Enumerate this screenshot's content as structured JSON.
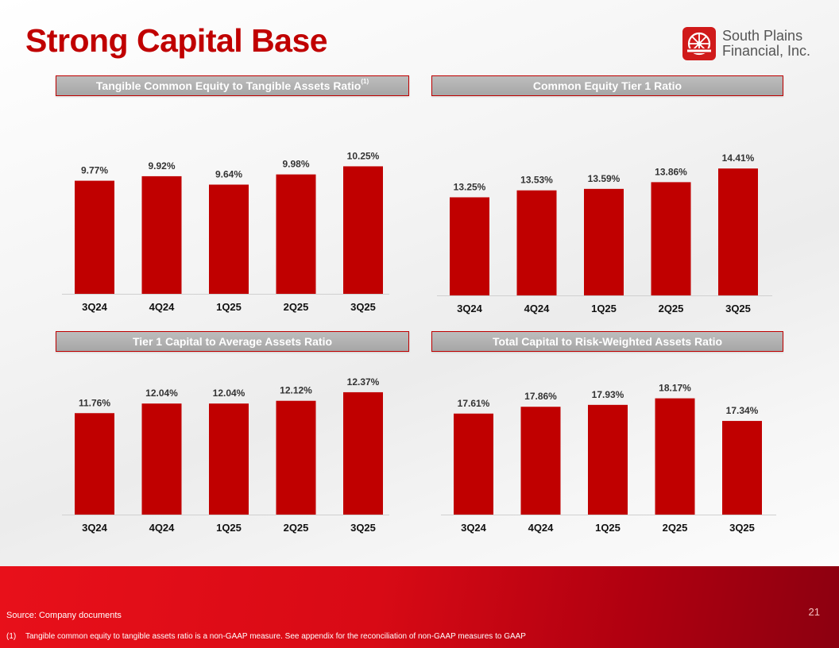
{
  "title": "Strong Capital Base",
  "logo": {
    "line1": "South Plains",
    "line2": "Financial, Inc.",
    "color": "#d01a1a"
  },
  "colors": {
    "bar": "#c00000",
    "accent": "#c00000"
  },
  "chart_data": [
    {
      "type": "bar",
      "title": "Tangible Common Equity to Tangible Assets Ratio",
      "title_superscript": "(1)",
      "categories": [
        "3Q24",
        "4Q24",
        "1Q25",
        "2Q25",
        "3Q25"
      ],
      "values": [
        9.77,
        9.92,
        9.64,
        9.98,
        10.25
      ],
      "labels": [
        "9.77%",
        "9.92%",
        "9.64%",
        "9.98%",
        "10.25%"
      ],
      "ylim": [
        6.0,
        10.5
      ]
    },
    {
      "type": "bar",
      "title": "Common Equity Tier 1 Ratio",
      "categories": [
        "3Q24",
        "4Q24",
        "1Q25",
        "2Q25",
        "3Q25"
      ],
      "values": [
        13.25,
        13.53,
        13.59,
        13.86,
        14.41
      ],
      "labels": [
        "13.25%",
        "13.53%",
        "13.59%",
        "13.86%",
        "14.41%"
      ],
      "ylim": [
        9.3,
        14.8
      ]
    },
    {
      "type": "bar",
      "title": "Tier 1 Capital to Average Assets Ratio",
      "categories": [
        "3Q24",
        "4Q24",
        "1Q25",
        "2Q25",
        "3Q25"
      ],
      "values": [
        11.76,
        12.04,
        12.04,
        12.12,
        12.37
      ],
      "labels": [
        "11.76%",
        "12.04%",
        "12.04%",
        "12.12%",
        "12.37%"
      ],
      "ylim": [
        8.8,
        12.6
      ]
    },
    {
      "type": "bar",
      "title": "Total Capital to Risk-Weighted Assets Ratio",
      "categories": [
        "3Q24",
        "4Q24",
        "1Q25",
        "2Q25",
        "3Q25"
      ],
      "values": [
        17.61,
        17.86,
        17.93,
        18.17,
        17.34
      ],
      "labels": [
        "17.61%",
        "17.86%",
        "17.93%",
        "18.17%",
        "17.34%"
      ],
      "ylim": [
        13.9,
        18.45
      ]
    }
  ],
  "footer": {
    "source": "Source: Company documents",
    "footnote_num": "(1)",
    "footnote_text": "Tangible common equity to tangible assets ratio is a non-GAAP measure. See appendix for the reconciliation of non-GAAP measures to GAAP",
    "page": "21"
  }
}
